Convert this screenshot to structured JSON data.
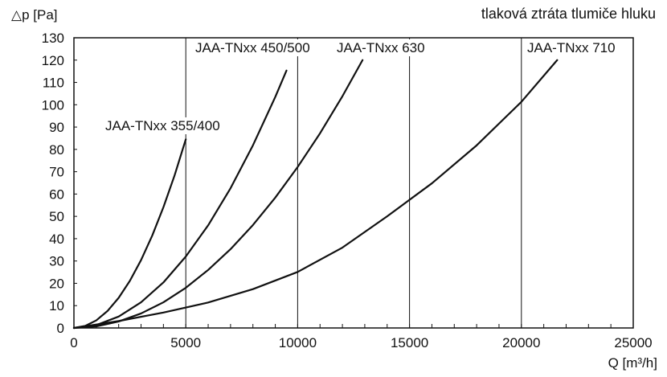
{
  "chart_data": {
    "type": "line",
    "title": "tlaková ztráta tlumiče hluku",
    "xlabel": "Q [m³/h]",
    "ylabel": "△p [Pa]",
    "xlim": [
      0,
      25000
    ],
    "ylim": [
      0,
      130
    ],
    "x_major_ticks": [
      0,
      5000,
      10000,
      15000,
      20000,
      25000
    ],
    "x_tick_labels": [
      "0",
      "5000",
      "10000",
      "15000",
      "20000",
      "25000"
    ],
    "y_major_ticks": [
      0,
      10,
      20,
      30,
      40,
      50,
      60,
      70,
      80,
      90,
      100,
      110,
      120,
      130
    ],
    "y_tick_labels": [
      "0",
      "10",
      "20",
      "30",
      "40",
      "50",
      "60",
      "70",
      "80",
      "90",
      "100",
      "110",
      "120",
      "130"
    ],
    "x_minor_step": 1000,
    "grid": "vertical",
    "line_color": "#111111",
    "series": [
      {
        "name": "JAA-TNxx 355/400",
        "x": [
          0,
          500,
          1000,
          1500,
          2000,
          2500,
          3000,
          3500,
          4000,
          4500,
          5000
        ],
        "y": [
          0,
          0.9,
          3.4,
          7.6,
          13.5,
          21.1,
          30.4,
          41.4,
          54.1,
          68.4,
          84.5
        ]
      },
      {
        "name": "JAA-TNxx 450/500",
        "x": [
          0,
          1000,
          2000,
          3000,
          4000,
          5000,
          6000,
          7000,
          8000,
          9000,
          9500
        ],
        "y": [
          0,
          1.3,
          5.1,
          11.5,
          20.4,
          32.0,
          46.0,
          62.6,
          81.8,
          103.5,
          115.3
        ]
      },
      {
        "name": "JAA-TNxx 630",
        "x": [
          0,
          1000,
          2000,
          3000,
          4000,
          5000,
          6000,
          7000,
          8000,
          9000,
          10000,
          11000,
          12000,
          12900
        ],
        "y": [
          0,
          0.7,
          2.9,
          6.5,
          11.5,
          18.0,
          26.0,
          35.3,
          46.1,
          58.4,
          72.1,
          87.2,
          103.8,
          120.0
        ]
      },
      {
        "name": "JAA-TNxx 710",
        "x": [
          0,
          2000,
          4000,
          6000,
          8000,
          10000,
          12000,
          14000,
          16000,
          18000,
          20000,
          21600
        ],
        "y": [
          0,
          3.1,
          6.9,
          11.4,
          17.4,
          25.1,
          36.0,
          50.0,
          64.8,
          81.8,
          101.3,
          120.0
        ]
      }
    ]
  }
}
